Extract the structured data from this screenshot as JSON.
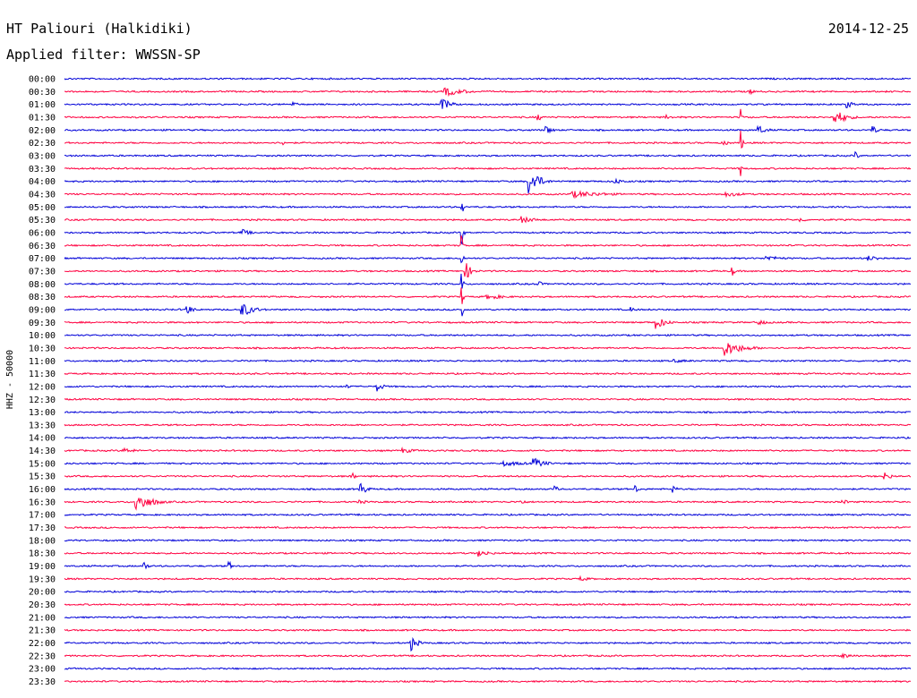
{
  "header": {
    "station": "HT Paliouri (Halkidiki)",
    "date": "2014-12-25",
    "filter": "Applied filter: WWSSN-SP"
  },
  "chart_data": {
    "type": "line",
    "ylabel": "HHZ - 50000",
    "colors": {
      "even_row": "#0000d8",
      "odd_row": "#ff0040"
    },
    "rows": [
      {
        "label": "00:00",
        "events": []
      },
      {
        "label": "00:30",
        "events": [
          {
            "t": 0.45,
            "a": 5,
            "d": 0.07
          },
          {
            "t": 0.81,
            "a": 3,
            "d": 0.02
          }
        ]
      },
      {
        "label": "01:00",
        "events": [
          {
            "t": 0.27,
            "a": 3,
            "d": 0.02
          },
          {
            "t": 0.445,
            "a": 8,
            "d": 0.03
          },
          {
            "t": 0.925,
            "a": 4,
            "d": 0.03
          }
        ]
      },
      {
        "label": "01:30",
        "events": [
          {
            "t": 0.56,
            "a": 5,
            "d": 0.01
          },
          {
            "t": 0.71,
            "a": 3,
            "d": 0.03
          },
          {
            "t": 0.8,
            "a": 14,
            "d": 0.003
          },
          {
            "t": 0.91,
            "a": 9,
            "d": 0.04
          }
        ]
      },
      {
        "label": "02:00",
        "events": [
          {
            "t": 0.57,
            "a": 5,
            "d": 0.02
          },
          {
            "t": 0.82,
            "a": 5,
            "d": 0.03
          },
          {
            "t": 0.955,
            "a": 5,
            "d": 0.02
          }
        ]
      },
      {
        "label": "02:30",
        "events": [
          {
            "t": 0.26,
            "a": 3,
            "d": 0.01
          },
          {
            "t": 0.78,
            "a": 3,
            "d": 0.02
          },
          {
            "t": 0.8,
            "a": 14,
            "d": 0.005
          }
        ]
      },
      {
        "label": "03:00",
        "events": [
          {
            "t": 0.935,
            "a": 5,
            "d": 0.01
          }
        ]
      },
      {
        "label": "03:30",
        "events": [
          {
            "t": 0.8,
            "a": 12,
            "d": 0.002
          }
        ]
      },
      {
        "label": "04:00",
        "events": [
          {
            "t": 0.55,
            "a": 16,
            "d": 0.03
          },
          {
            "t": 0.65,
            "a": 3,
            "d": 0.05
          }
        ]
      },
      {
        "label": "04:30",
        "events": [
          {
            "t": 0.6,
            "a": 4,
            "d": 0.12
          },
          {
            "t": 0.78,
            "a": 3,
            "d": 0.07
          }
        ]
      },
      {
        "label": "05:00",
        "events": [
          {
            "t": 0.47,
            "a": 14,
            "d": 0.003
          }
        ]
      },
      {
        "label": "05:30",
        "events": [
          {
            "t": 0.54,
            "a": 4,
            "d": 0.05
          },
          {
            "t": 0.87,
            "a": 3,
            "d": 0.02
          }
        ]
      },
      {
        "label": "06:00",
        "events": [
          {
            "t": 0.21,
            "a": 4,
            "d": 0.03
          },
          {
            "t": 0.47,
            "a": 14,
            "d": 0.005
          }
        ]
      },
      {
        "label": "06:30",
        "events": [
          {
            "t": 0.47,
            "a": 12,
            "d": 0.004
          }
        ]
      },
      {
        "label": "07:00",
        "events": [
          {
            "t": 0.47,
            "a": 12,
            "d": 0.004
          },
          {
            "t": 0.83,
            "a": 3,
            "d": 0.06
          },
          {
            "t": 0.95,
            "a": 3,
            "d": 0.06
          }
        ]
      },
      {
        "label": "07:30",
        "events": [
          {
            "t": 0.475,
            "a": 9,
            "d": 0.02
          },
          {
            "t": 0.79,
            "a": 5,
            "d": 0.01
          }
        ]
      },
      {
        "label": "08:00",
        "events": [
          {
            "t": 0.47,
            "a": 12,
            "d": 0.004
          },
          {
            "t": 0.56,
            "a": 3,
            "d": 0.02
          }
        ]
      },
      {
        "label": "08:30",
        "events": [
          {
            "t": 0.47,
            "a": 12,
            "d": 0.004
          },
          {
            "t": 0.5,
            "a": 3,
            "d": 0.07
          }
        ]
      },
      {
        "label": "09:00",
        "events": [
          {
            "t": 0.145,
            "a": 6,
            "d": 0.02
          },
          {
            "t": 0.21,
            "a": 8,
            "d": 0.04
          },
          {
            "t": 0.47,
            "a": 12,
            "d": 0.004
          },
          {
            "t": 0.67,
            "a": 3,
            "d": 0.02
          }
        ]
      },
      {
        "label": "09:30",
        "events": [
          {
            "t": 0.7,
            "a": 8,
            "d": 0.03
          },
          {
            "t": 0.82,
            "a": 3,
            "d": 0.04
          }
        ]
      },
      {
        "label": "10:00",
        "events": []
      },
      {
        "label": "10:30",
        "events": [
          {
            "t": 0.78,
            "a": 9,
            "d": 0.06
          }
        ]
      },
      {
        "label": "11:00",
        "events": [
          {
            "t": 0.72,
            "a": 2,
            "d": 0.08
          }
        ]
      },
      {
        "label": "11:30",
        "events": []
      },
      {
        "label": "12:00",
        "events": [
          {
            "t": 0.335,
            "a": 4,
            "d": 0.01
          },
          {
            "t": 0.37,
            "a": 6,
            "d": 0.02
          }
        ]
      },
      {
        "label": "12:30",
        "events": []
      },
      {
        "label": "13:00",
        "events": []
      },
      {
        "label": "13:30",
        "events": []
      },
      {
        "label": "14:00",
        "events": []
      },
      {
        "label": "14:30",
        "events": [
          {
            "t": 0.07,
            "a": 3,
            "d": 0.05
          },
          {
            "t": 0.4,
            "a": 3,
            "d": 0.05
          }
        ]
      },
      {
        "label": "15:00",
        "events": [
          {
            "t": 0.52,
            "a": 3,
            "d": 0.08
          },
          {
            "t": 0.555,
            "a": 6,
            "d": 0.04
          }
        ]
      },
      {
        "label": "15:30",
        "events": [
          {
            "t": 0.34,
            "a": 5,
            "d": 0.01
          },
          {
            "t": 0.97,
            "a": 5,
            "d": 0.02
          }
        ]
      },
      {
        "label": "16:00",
        "events": [
          {
            "t": 0.35,
            "a": 8,
            "d": 0.02
          },
          {
            "t": 0.58,
            "a": 10,
            "d": 0.005
          },
          {
            "t": 0.675,
            "a": 5,
            "d": 0.01
          },
          {
            "t": 0.72,
            "a": 5,
            "d": 0.01
          }
        ]
      },
      {
        "label": "16:30",
        "events": [
          {
            "t": 0.085,
            "a": 11,
            "d": 0.05
          },
          {
            "t": 0.35,
            "a": 3,
            "d": 0.02
          },
          {
            "t": 0.54,
            "a": 3,
            "d": 0.02
          },
          {
            "t": 0.92,
            "a": 3,
            "d": 0.02
          }
        ]
      },
      {
        "label": "17:00",
        "events": []
      },
      {
        "label": "17:30",
        "events": []
      },
      {
        "label": "18:00",
        "events": []
      },
      {
        "label": "18:30",
        "events": [
          {
            "t": 0.49,
            "a": 4,
            "d": 0.04
          }
        ]
      },
      {
        "label": "19:00",
        "events": [
          {
            "t": 0.095,
            "a": 6,
            "d": 0.01
          },
          {
            "t": 0.195,
            "a": 5,
            "d": 0.01
          }
        ]
      },
      {
        "label": "19:30",
        "events": [
          {
            "t": 0.61,
            "a": 3,
            "d": 0.03
          }
        ]
      },
      {
        "label": "20:00",
        "events": []
      },
      {
        "label": "20:30",
        "events": []
      },
      {
        "label": "21:00",
        "events": []
      },
      {
        "label": "21:30",
        "events": []
      },
      {
        "label": "22:00",
        "events": [
          {
            "t": 0.41,
            "a": 9,
            "d": 0.02
          }
        ]
      },
      {
        "label": "22:30",
        "events": [
          {
            "t": 0.92,
            "a": 3,
            "d": 0.04
          }
        ]
      },
      {
        "label": "23:00",
        "events": []
      },
      {
        "label": "23:30",
        "events": []
      }
    ]
  }
}
